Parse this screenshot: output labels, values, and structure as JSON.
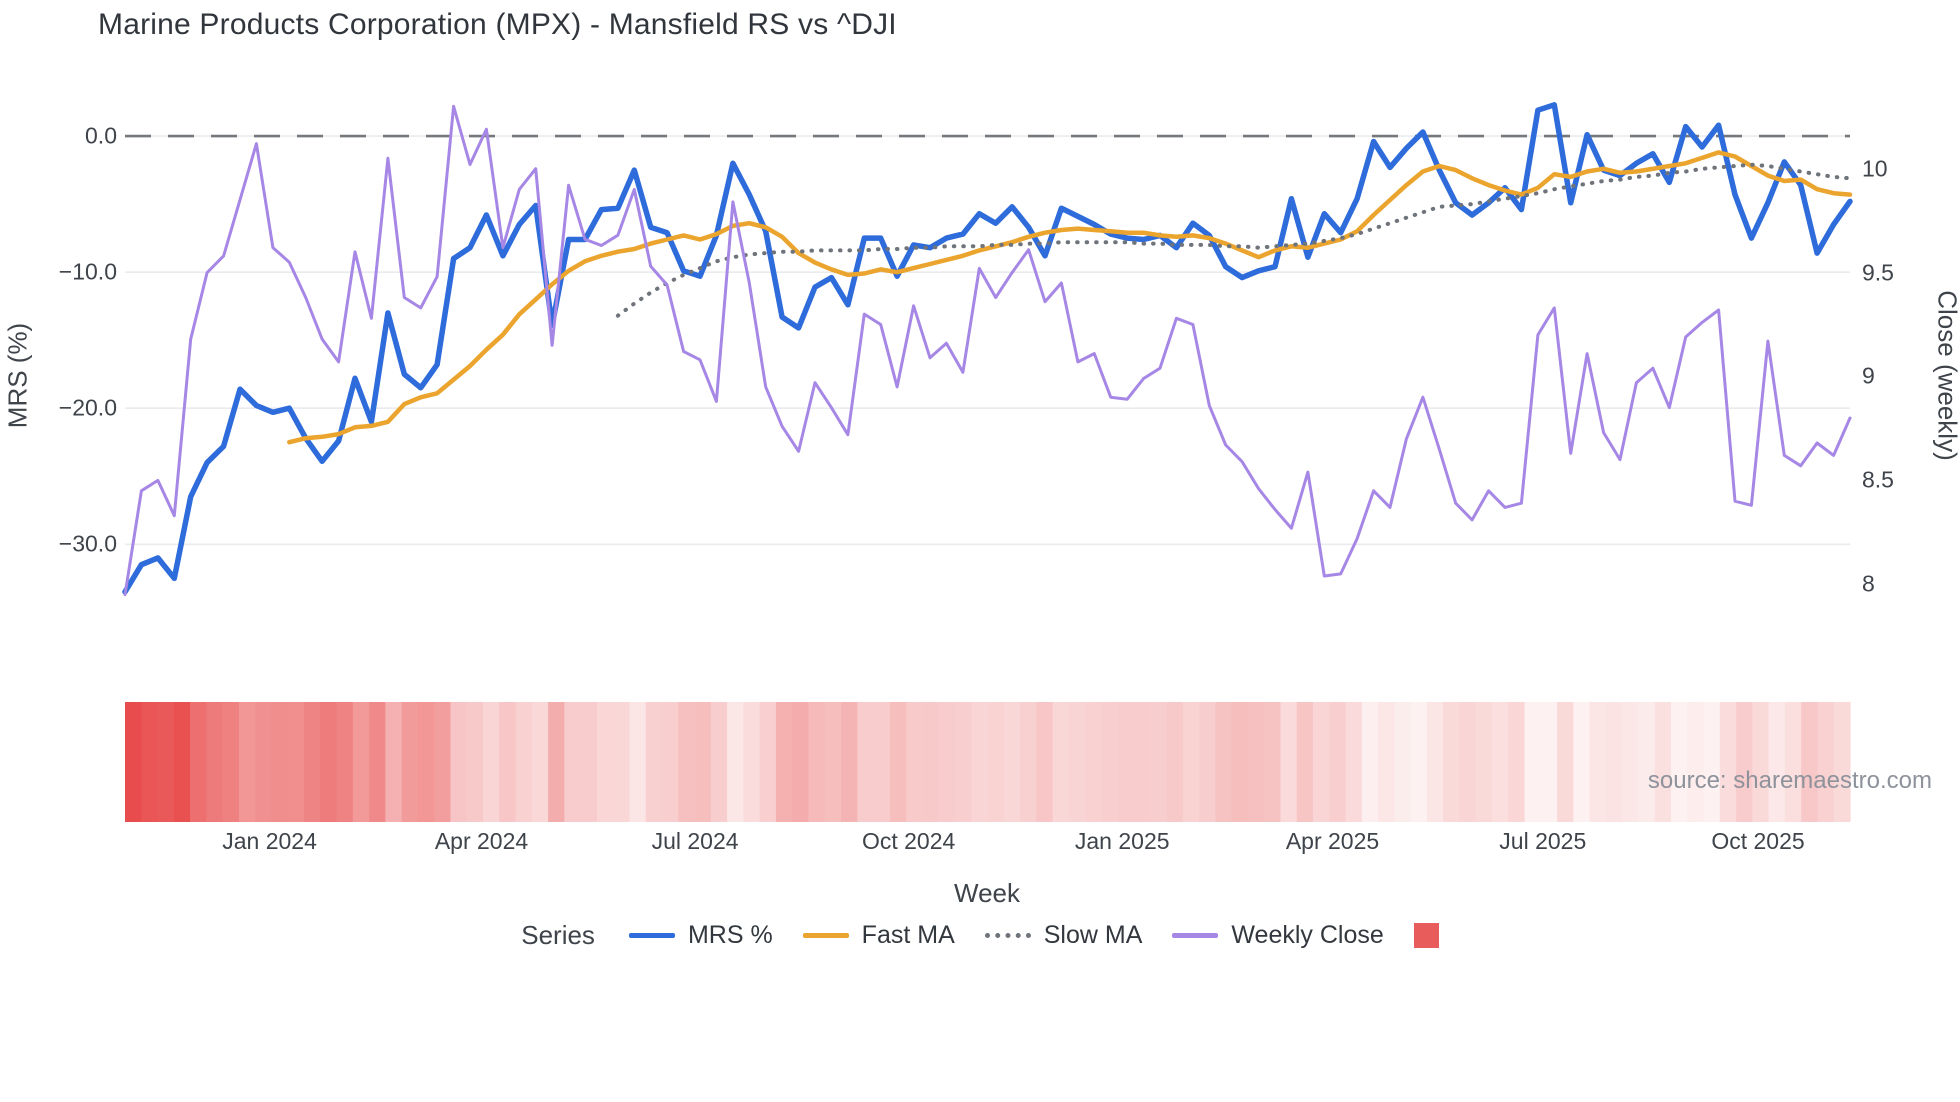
{
  "title": "Marine Products Corporation (MPX) - Mansfield RS vs ^DJI",
  "source_note": "source: sharemaestro.com",
  "legend": {
    "title": "Series",
    "items": [
      {
        "label": "MRS %",
        "color": "#2e6bdb",
        "style": "solid"
      },
      {
        "label": "Fast MA",
        "color": "#eba42d",
        "style": "solid"
      },
      {
        "label": "Slow MA",
        "color": "#6f747b",
        "style": "dotted"
      },
      {
        "label": "Weekly Close",
        "color": "#a687e6",
        "style": "solid"
      },
      {
        "label": "",
        "color": "#e85c5c",
        "style": "square"
      }
    ]
  },
  "chart_data": {
    "type": "line",
    "title": "Marine Products Corporation (MPX) - Mansfield RS vs ^DJI",
    "xlabel": "Week",
    "ylabel_left": "MRS (%)",
    "ylabel_right": "Close (weekly)",
    "grid": true,
    "zero_line_mrs": 0,
    "weeks": 106,
    "x_ticks": [
      {
        "label": "Jan 2024",
        "week": 8.8
      },
      {
        "label": "Apr 2024",
        "week": 21.7
      },
      {
        "label": "Jul 2024",
        "week": 34.7
      },
      {
        "label": "Oct 2024",
        "week": 47.7
      },
      {
        "label": "Jan 2025",
        "week": 60.7
      },
      {
        "label": "Apr 2025",
        "week": 73.5
      },
      {
        "label": "Jul 2025",
        "week": 86.3
      },
      {
        "label": "Oct 2025",
        "week": 99.4
      }
    ],
    "y_left": {
      "label": "MRS (%)",
      "min": -36.3,
      "max": 2.8,
      "ticks": [
        0,
        -10,
        -20,
        -30
      ],
      "tick_labels": [
        "0.0",
        "−10.0",
        "−20.0",
        "−30.0"
      ]
    },
    "y_right": {
      "label": "Close (weekly)",
      "min": 7.78,
      "max": 10.34,
      "ticks": [
        10,
        9.5,
        9,
        8.5,
        8
      ],
      "tick_labels": [
        "10",
        "9.5",
        "9",
        "8.5",
        "8"
      ]
    },
    "series": [
      {
        "name": "MRS %",
        "axis": "left",
        "color": "#2e6bdb",
        "style": "solid",
        "width": 5.5,
        "values": [
          -33.5,
          -31.5,
          -31.0,
          -32.5,
          -26.5,
          -24.0,
          -22.8,
          -18.6,
          -19.8,
          -20.3,
          -20.0,
          -22.2,
          -23.9,
          -22.4,
          -17.8,
          -21.0,
          -13.0,
          -17.5,
          -18.5,
          -16.8,
          -9.0,
          -8.2,
          -5.8,
          -8.8,
          -6.5,
          -5.1,
          -13.9,
          -7.6,
          -7.6,
          -5.4,
          -5.3,
          -2.5,
          -6.7,
          -7.1,
          -9.9,
          -10.3,
          -7.3,
          -2.0,
          -4.3,
          -7.0,
          -13.3,
          -14.1,
          -11.1,
          -10.4,
          -12.4,
          -7.5,
          -7.5,
          -10.3,
          -8.0,
          -8.2,
          -7.5,
          -7.2,
          -5.7,
          -6.4,
          -5.2,
          -6.7,
          -8.8,
          -5.3,
          -5.9,
          -6.5,
          -7.2,
          -7.5,
          -7.6,
          -7.3,
          -8.2,
          -6.4,
          -7.3,
          -9.6,
          -10.4,
          -9.9,
          -9.6,
          -4.6,
          -8.9,
          -5.7,
          -7.1,
          -4.6,
          -0.4,
          -2.3,
          -0.9,
          0.3,
          -2.5,
          -4.9,
          -5.8,
          -4.9,
          -3.8,
          -5.4,
          1.9,
          2.3,
          -4.9,
          0.1,
          -2.5,
          -2.9,
          -2.0,
          -1.3,
          -3.4,
          0.7,
          -0.8,
          0.8,
          -4.3,
          -7.5,
          -4.9,
          -1.9,
          -3.6,
          -8.6,
          -6.5,
          -4.8
        ]
      },
      {
        "name": "Fast MA",
        "axis": "left",
        "color": "#eba42d",
        "style": "solid",
        "width": 4.5,
        "values": [
          null,
          null,
          null,
          null,
          null,
          null,
          null,
          null,
          null,
          null,
          -22.5,
          -22.2,
          -22.1,
          -21.9,
          -21.4,
          -21.3,
          -21.0,
          -19.7,
          -19.2,
          -18.9,
          -17.9,
          -16.9,
          -15.7,
          -14.6,
          -13.1,
          -12.0,
          -10.9,
          -9.9,
          -9.2,
          -8.8,
          -8.5,
          -8.3,
          -7.9,
          -7.6,
          -7.3,
          -7.6,
          -7.2,
          -6.6,
          -6.4,
          -6.7,
          -7.4,
          -8.6,
          -9.3,
          -9.8,
          -10.2,
          -10.1,
          -9.8,
          -10.0,
          -9.7,
          -9.4,
          -9.1,
          -8.8,
          -8.4,
          -8.1,
          -7.8,
          -7.4,
          -7.1,
          -6.9,
          -6.8,
          -6.9,
          -7.0,
          -7.1,
          -7.1,
          -7.3,
          -7.4,
          -7.3,
          -7.5,
          -7.9,
          -8.4,
          -8.9,
          -8.4,
          -8.1,
          -8.2,
          -7.9,
          -7.6,
          -7.0,
          -5.8,
          -4.7,
          -3.6,
          -2.6,
          -2.2,
          -2.5,
          -3.1,
          -3.6,
          -4.0,
          -4.3,
          -3.8,
          -2.8,
          -3.0,
          -2.6,
          -2.4,
          -2.7,
          -2.6,
          -2.4,
          -2.2,
          -2.0,
          -1.6,
          -1.2,
          -1.5,
          -2.2,
          -2.9,
          -3.3,
          -3.2,
          -3.9,
          -4.2,
          -4.3
        ]
      },
      {
        "name": "Slow MA",
        "axis": "left",
        "color": "#6f747b",
        "style": "dotted",
        "width": 4,
        "values": [
          null,
          null,
          null,
          null,
          null,
          null,
          null,
          null,
          null,
          null,
          null,
          null,
          null,
          null,
          null,
          null,
          null,
          null,
          null,
          null,
          null,
          null,
          null,
          null,
          null,
          null,
          null,
          null,
          null,
          null,
          -13.2,
          -12.3,
          -11.5,
          -10.8,
          -10.2,
          -9.7,
          -9.2,
          -8.9,
          -8.7,
          -8.6,
          -8.5,
          -8.5,
          -8.4,
          -8.4,
          -8.4,
          -8.4,
          -8.3,
          -8.3,
          -8.2,
          -8.2,
          -8.1,
          -8.1,
          -8.1,
          -8.0,
          -8.0,
          -7.9,
          -7.9,
          -7.8,
          -7.8,
          -7.8,
          -7.8,
          -7.8,
          -7.9,
          -7.9,
          -8.0,
          -8.0,
          -8.0,
          -8.1,
          -8.1,
          -8.2,
          -8.1,
          -8.0,
          -7.9,
          -7.7,
          -7.5,
          -7.2,
          -6.8,
          -6.4,
          -6.0,
          -5.6,
          -5.2,
          -5.1,
          -5.0,
          -4.8,
          -4.6,
          -4.4,
          -4.2,
          -3.9,
          -3.7,
          -3.5,
          -3.3,
          -3.2,
          -3.0,
          -2.9,
          -2.7,
          -2.6,
          -2.4,
          -2.3,
          -2.2,
          -2.1,
          -2.2,
          -2.4,
          -2.6,
          -2.8,
          -3.0,
          -3.1
        ]
      },
      {
        "name": "Weekly Close",
        "axis": "right",
        "color": "#a687e6",
        "style": "solid",
        "width": 3,
        "values": [
          7.95,
          8.45,
          8.5,
          8.33,
          9.18,
          9.5,
          9.58,
          9.85,
          10.12,
          9.62,
          9.55,
          9.38,
          9.18,
          9.07,
          9.6,
          9.28,
          10.05,
          9.38,
          9.33,
          9.48,
          10.3,
          10.02,
          10.19,
          9.62,
          9.9,
          10.0,
          9.15,
          9.92,
          9.66,
          9.63,
          9.68,
          9.9,
          9.53,
          9.44,
          9.12,
          9.08,
          8.88,
          9.84,
          9.45,
          8.95,
          8.76,
          8.64,
          8.97,
          8.85,
          8.72,
          9.3,
          9.25,
          8.95,
          9.34,
          9.09,
          9.16,
          9.02,
          9.52,
          9.38,
          9.5,
          9.61,
          9.36,
          9.45,
          9.07,
          9.11,
          8.9,
          8.89,
          8.99,
          9.04,
          9.28,
          9.25,
          8.86,
          8.67,
          8.59,
          8.46,
          8.36,
          8.27,
          8.54,
          8.04,
          8.05,
          8.22,
          8.45,
          8.37,
          8.7,
          8.9,
          8.65,
          8.39,
          8.31,
          8.45,
          8.37,
          8.39,
          9.2,
          9.33,
          8.63,
          9.11,
          8.73,
          8.6,
          8.97,
          9.04,
          8.85,
          9.19,
          9.26,
          9.32,
          8.4,
          8.38,
          9.17,
          8.62,
          8.57,
          8.68,
          8.62,
          8.8
        ]
      }
    ],
    "heatmap_strip": {
      "derived_from": "MRS %",
      "color_near_zero": "#fdf1f1",
      "color_most_negative": "#e84a4a",
      "value_domain": [
        0,
        -34
      ]
    }
  }
}
